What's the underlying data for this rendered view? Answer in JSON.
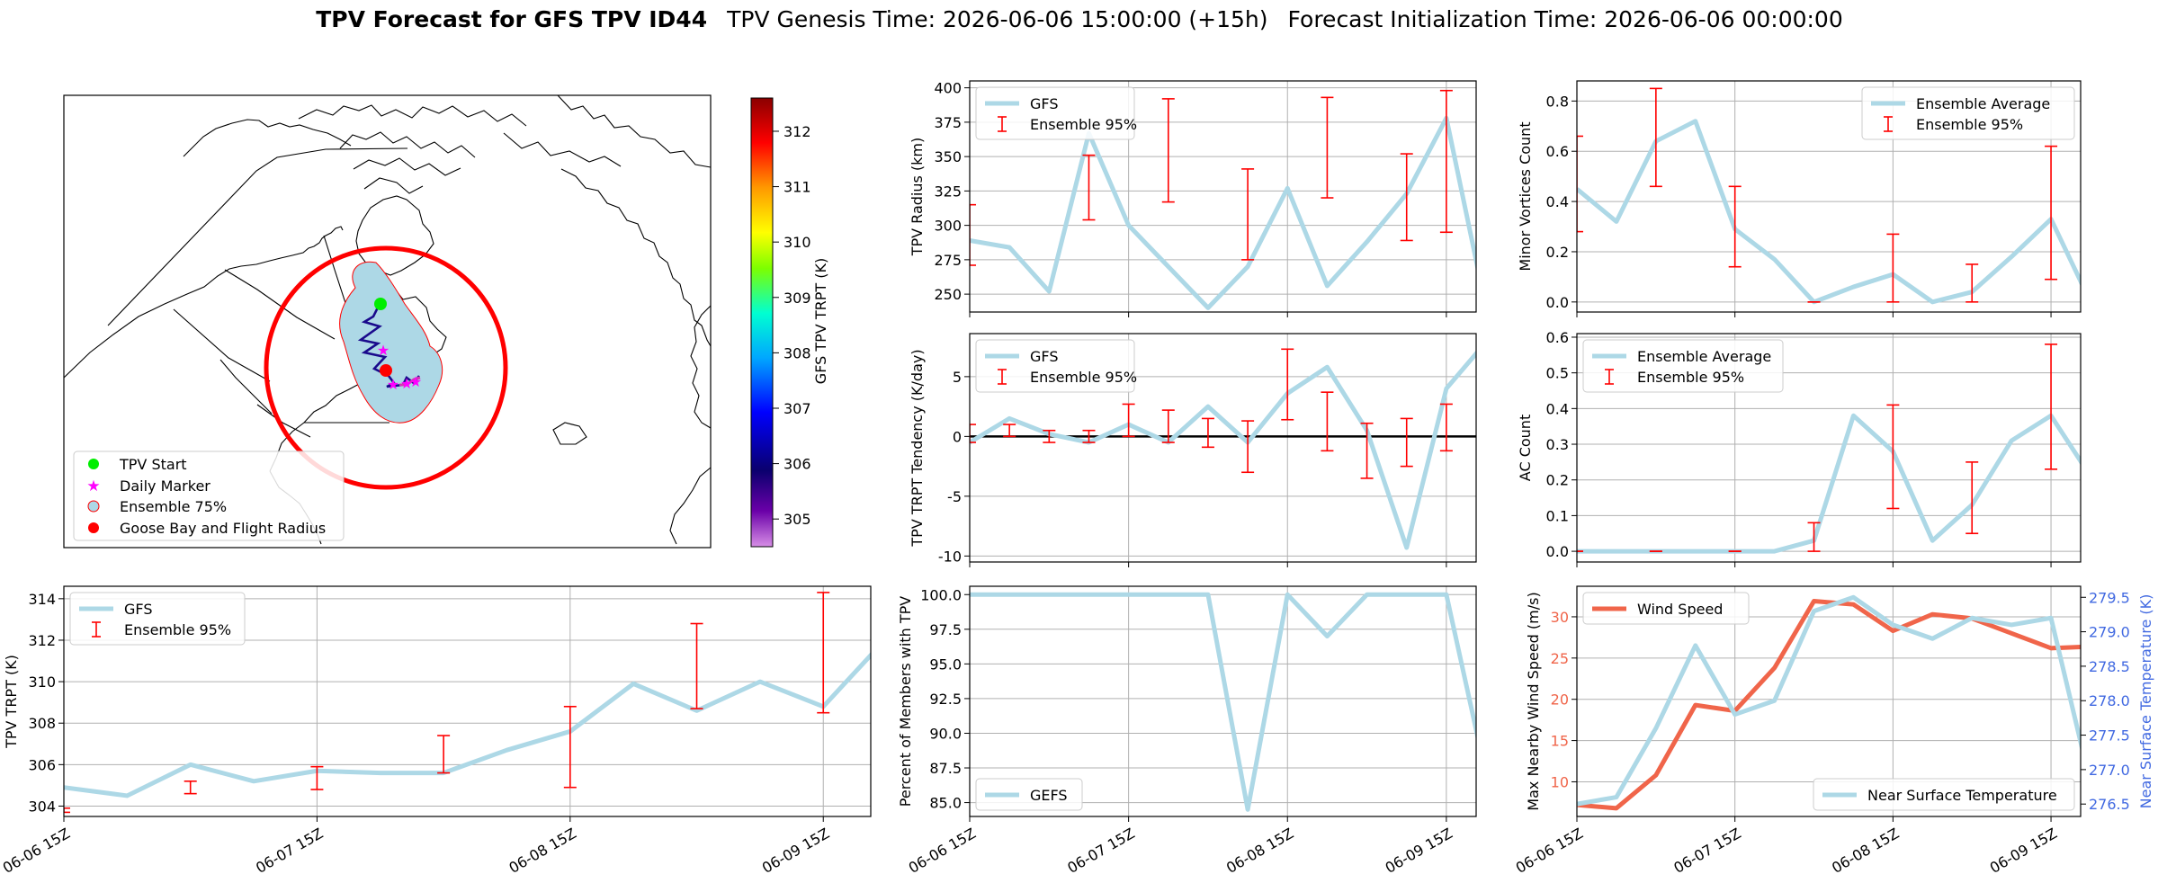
{
  "title": {
    "bold": "TPV Forecast for GFS TPV ID44",
    "genesis": "TPV Genesis Time: 2026-06-06 15:00:00 (+15h)",
    "init": "Forecast Initialization Time: 2026-06-06 00:00:00"
  },
  "colors": {
    "gfs_line": "#add8e6",
    "ensemble_bar": "#ff0000",
    "wind": "#f0654a",
    "temp_label": "#4169e1",
    "track": "#1a0a8c",
    "start_marker": "#00ee00",
    "daily_marker": "#ff00ff",
    "goose_bay": "#ff0000"
  },
  "chart_data": [
    {
      "id": "map",
      "type": "map",
      "legend": [
        "TPV Start",
        "Daily Marker",
        "Ensemble 75%",
        "Goose Bay and Flight Radius"
      ],
      "colorbar_label": "GFS TPV TRPT (K)",
      "colorbar_ticks": [
        305,
        306,
        307,
        308,
        309,
        310,
        311,
        312
      ],
      "colorbar_range": [
        304.5,
        312.6
      ]
    },
    {
      "id": "radius",
      "type": "line",
      "ylabel": "TPV Radius (km)",
      "ylim": [
        237,
        405
      ],
      "yticks": [
        250,
        275,
        300,
        325,
        350,
        375,
        400
      ],
      "xlim": [
        0,
        25.5
      ],
      "xticks": [
        0,
        8,
        16,
        24
      ],
      "xticklabels": [
        "06-06 15Z",
        "06-07 15Z",
        "06-08 15Z",
        "06-09 15Z"
      ],
      "series": [
        {
          "name": "GFS",
          "x": [
            0,
            2,
            4,
            6,
            8,
            10,
            12,
            14,
            16,
            18,
            20,
            22,
            24,
            26
          ],
          "y": [
            289,
            284,
            252,
            367,
            300,
            270,
            240,
            270,
            327,
            256,
            288,
            323,
            378,
            240
          ]
        }
      ],
      "errorbars": {
        "name": "Ensemble 95%",
        "x": [
          0,
          6,
          10,
          14,
          18,
          22,
          24
        ],
        "lo": [
          271,
          304,
          317,
          275,
          320,
          289,
          295
        ],
        "hi": [
          315,
          351,
          392,
          341,
          393,
          352,
          398
        ]
      },
      "legend_loc": "upper-left"
    },
    {
      "id": "minor",
      "type": "line",
      "ylabel": "Minor Vortices Count",
      "ylim": [
        -0.04,
        0.88
      ],
      "yticks": [
        0.0,
        0.2,
        0.4,
        0.6,
        0.8
      ],
      "ytickformat": 1,
      "xlim": [
        0,
        25.5
      ],
      "xticks": [
        0,
        8,
        16,
        24
      ],
      "series": [
        {
          "name": "Ensemble Average",
          "x": [
            0,
            2,
            4,
            6,
            8,
            10,
            12,
            14,
            16,
            18,
            20,
            22,
            24,
            26
          ],
          "y": [
            0.45,
            0.32,
            0.64,
            0.72,
            0.29,
            0.17,
            0.0,
            0.06,
            0.11,
            0.0,
            0.04,
            0.18,
            0.33,
            0.0
          ]
        }
      ],
      "errorbars": {
        "name": "Ensemble 95%",
        "x": [
          0,
          4,
          8,
          12,
          16,
          20,
          24
        ],
        "lo": [
          0.28,
          0.46,
          0.14,
          0.0,
          0.0,
          0.0,
          0.09
        ],
        "hi": [
          0.66,
          0.85,
          0.46,
          0.0,
          0.27,
          0.15,
          0.62
        ]
      },
      "legend_loc": "upper-right"
    },
    {
      "id": "tendency",
      "type": "line",
      "ylabel": "TPV TRPT Tendency (K/day)",
      "ylim": [
        -10.5,
        8.6
      ],
      "yticks": [
        -10,
        -5,
        0,
        5
      ],
      "xlim": [
        0,
        25.5
      ],
      "xticks": [
        0,
        8,
        16,
        24
      ],
      "zero_line": true,
      "series": [
        {
          "name": "GFS",
          "x": [
            0,
            2,
            4,
            6,
            8,
            10,
            12,
            14,
            16,
            18,
            20,
            22,
            24,
            26
          ],
          "y": [
            -0.5,
            1.5,
            0.2,
            -0.5,
            1.0,
            -0.5,
            2.5,
            -0.5,
            3.6,
            5.8,
            0.5,
            -9.3,
            4.0,
            7.9
          ]
        }
      ],
      "errorbars": {
        "name": "Ensemble 95%",
        "x": [
          0,
          2,
          4,
          6,
          8,
          10,
          12,
          14,
          16,
          18,
          20,
          22,
          24,
          26
        ],
        "lo": [
          -0.5,
          0.0,
          -0.5,
          -0.5,
          0.0,
          -0.5,
          -0.9,
          -3.0,
          1.4,
          -1.2,
          -3.5,
          -2.5,
          -1.2,
          -1.9
        ],
        "hi": [
          1.0,
          1.0,
          0.5,
          0.5,
          2.7,
          2.2,
          1.5,
          1.3,
          7.3,
          3.7,
          1.1,
          1.5,
          2.7,
          4.1
        ]
      },
      "legend_loc": "upper-left"
    },
    {
      "id": "ac",
      "type": "line",
      "ylabel": "AC Count",
      "ylim": [
        -0.03,
        0.61
      ],
      "yticks": [
        0.0,
        0.1,
        0.2,
        0.3,
        0.4,
        0.5,
        0.6
      ],
      "ytickformat": 1,
      "xlim": [
        0,
        25.5
      ],
      "xticks": [
        0,
        8,
        16,
        24
      ],
      "series": [
        {
          "name": "Ensemble Average",
          "x": [
            0,
            2,
            4,
            6,
            8,
            10,
            12,
            14,
            16,
            18,
            20,
            22,
            24,
            26
          ],
          "y": [
            0,
            0,
            0,
            0,
            0,
            0,
            0.03,
            0.38,
            0.28,
            0.03,
            0.13,
            0.31,
            0.38,
            0.21
          ]
        }
      ],
      "errorbars": {
        "name": "Ensemble 95%",
        "x": [
          0,
          4,
          8,
          12,
          16,
          20,
          24
        ],
        "lo": [
          0,
          0,
          0,
          0,
          0.12,
          0.05,
          0.23
        ],
        "hi": [
          0,
          0,
          0,
          0.08,
          0.41,
          0.25,
          0.58
        ]
      },
      "legend_loc": "upper-left"
    },
    {
      "id": "trpt",
      "type": "line",
      "ylabel": "TPV TRPT (K)",
      "ylim": [
        303.5,
        314.6
      ],
      "yticks": [
        304,
        306,
        308,
        310,
        312,
        314
      ],
      "xlim": [
        0,
        25.5
      ],
      "xticks": [
        0,
        8,
        16,
        24
      ],
      "xticklabels": [
        "06-06 15Z",
        "06-07 15Z",
        "06-08 15Z",
        "06-09 15Z"
      ],
      "series": [
        {
          "name": "GFS",
          "x": [
            0,
            2,
            4,
            6,
            8,
            10,
            12,
            14,
            16,
            18,
            20,
            22,
            24,
            26
          ],
          "y": [
            304.9,
            304.5,
            306.0,
            305.2,
            305.7,
            305.6,
            305.6,
            306.7,
            307.6,
            309.9,
            308.6,
            310.0,
            308.8,
            312.1
          ]
        }
      ],
      "errorbars": {
        "name": "Ensemble 95%",
        "x": [
          0,
          4,
          8,
          12,
          16,
          20,
          24
        ],
        "lo": [
          303.7,
          304.6,
          304.8,
          305.6,
          304.9,
          308.7,
          308.5
        ],
        "hi": [
          303.9,
          305.2,
          305.9,
          307.4,
          308.8,
          312.8,
          314.3
        ]
      },
      "legend_loc": "upper-left"
    },
    {
      "id": "percent",
      "type": "line",
      "ylabel": "Percent of Members with TPV",
      "ylim": [
        84.0,
        100.6
      ],
      "yticks": [
        85.0,
        87.5,
        90.0,
        92.5,
        95.0,
        97.5,
        100.0
      ],
      "ytickformat": 1,
      "xlim": [
        0,
        25.5
      ],
      "xticks": [
        0,
        8,
        16,
        24
      ],
      "xticklabels": [
        "06-06 15Z",
        "06-07 15Z",
        "06-08 15Z",
        "06-09 15Z"
      ],
      "series": [
        {
          "name": "GEFS",
          "x": [
            0,
            2,
            4,
            6,
            8,
            10,
            12,
            14,
            16,
            18,
            20,
            22,
            24,
            26
          ],
          "y": [
            100,
            100,
            100,
            100,
            100,
            100,
            100,
            84.5,
            100,
            97,
            100,
            100,
            100,
            87
          ]
        }
      ],
      "legend_loc": "lower-left"
    },
    {
      "id": "wind_temp",
      "type": "line",
      "ylabel": "Max Nearby Wind Speed (m/s)",
      "ylabel_right": "Near Surface Temperature (K)",
      "ylim": [
        5.8,
        33.7
      ],
      "yticks": [
        10,
        15,
        20,
        25,
        30
      ],
      "ylim_right": [
        276.32,
        279.66
      ],
      "yticks_right": [
        276.5,
        277.0,
        277.5,
        278.0,
        278.5,
        279.0,
        279.5
      ],
      "xlim": [
        0,
        25.5
      ],
      "xticks": [
        0,
        8,
        16,
        24
      ],
      "xticklabels": [
        "06-06 15Z",
        "06-07 15Z",
        "06-08 15Z",
        "06-09 15Z"
      ],
      "series": [
        {
          "name": "Wind Speed",
          "axis": "left",
          "x": [
            0,
            2,
            4,
            6,
            8,
            10,
            12,
            14,
            16,
            18,
            20,
            22,
            24,
            26
          ],
          "y": [
            7.2,
            6.8,
            10.8,
            19.3,
            18.6,
            23.8,
            31.9,
            31.5,
            28.3,
            30.3,
            29.8,
            28.0,
            26.2,
            26.4
          ]
        },
        {
          "name": "Near Surface Temperature",
          "axis": "right",
          "x": [
            0,
            2,
            4,
            6,
            8,
            10,
            12,
            14,
            16,
            18,
            20,
            22,
            24,
            26
          ],
          "y": [
            276.5,
            276.6,
            277.6,
            278.8,
            277.8,
            278.0,
            279.3,
            279.5,
            279.1,
            278.9,
            279.2,
            279.1,
            279.2,
            276.8
          ]
        }
      ],
      "legend_loc": "split"
    }
  ]
}
